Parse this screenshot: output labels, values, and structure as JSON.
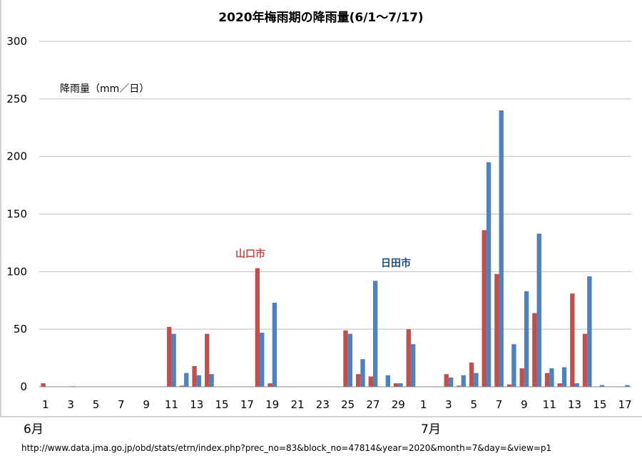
{
  "chart_data": {
    "type": "bar",
    "title": "2020年梅雨期の降雨量(6/1～7/17)",
    "ylabel": "降雨量（mm／日）",
    "ylim": [
      0,
      300
    ],
    "yticks": [
      "0",
      "50",
      "100",
      "150",
      "200",
      "250",
      "300"
    ],
    "grid": true,
    "month_labels": [
      "6月",
      "7月"
    ],
    "x_ticks": [
      "1",
      "3",
      "5",
      "7",
      "9",
      "11",
      "13",
      "15",
      "17",
      "19",
      "21",
      "23",
      "25",
      "27",
      "29",
      "1",
      "3",
      "5",
      "7",
      "9",
      "11",
      "13",
      "15",
      "17"
    ],
    "series": [
      {
        "name": "山口市",
        "color": "#c0504d",
        "values": [
          3,
          0,
          0,
          0,
          0,
          0,
          0,
          0,
          0,
          0,
          52,
          1,
          18,
          46,
          0,
          0,
          0,
          103,
          3,
          0,
          0,
          0,
          0,
          0,
          49,
          11,
          9,
          0,
          3,
          50,
          0,
          0,
          11,
          1,
          21,
          136,
          98,
          2,
          16,
          64,
          12,
          3,
          81,
          46,
          0,
          0,
          0
        ]
      },
      {
        "name": "日田市",
        "color": "#4f81bd",
        "values": [
          0,
          0,
          0.5,
          0,
          0,
          0,
          0,
          0,
          0,
          0,
          46,
          12,
          10,
          11,
          0,
          0,
          0,
          47,
          73,
          0,
          0,
          0,
          0,
          0,
          46,
          24,
          92,
          10,
          3,
          37,
          0,
          0,
          8,
          10,
          12,
          195,
          240,
          37,
          83,
          133,
          16,
          17,
          3,
          96,
          1.5,
          0,
          1.5
        ]
      }
    ],
    "annotations": [
      "山口市",
      "日田市"
    ]
  },
  "source_url": "http://www.data.jma.go.jp/obd/stats/etrn/index.php?prec_no=83&block_no=47814&year=2020&month=7&day=&view=p1"
}
